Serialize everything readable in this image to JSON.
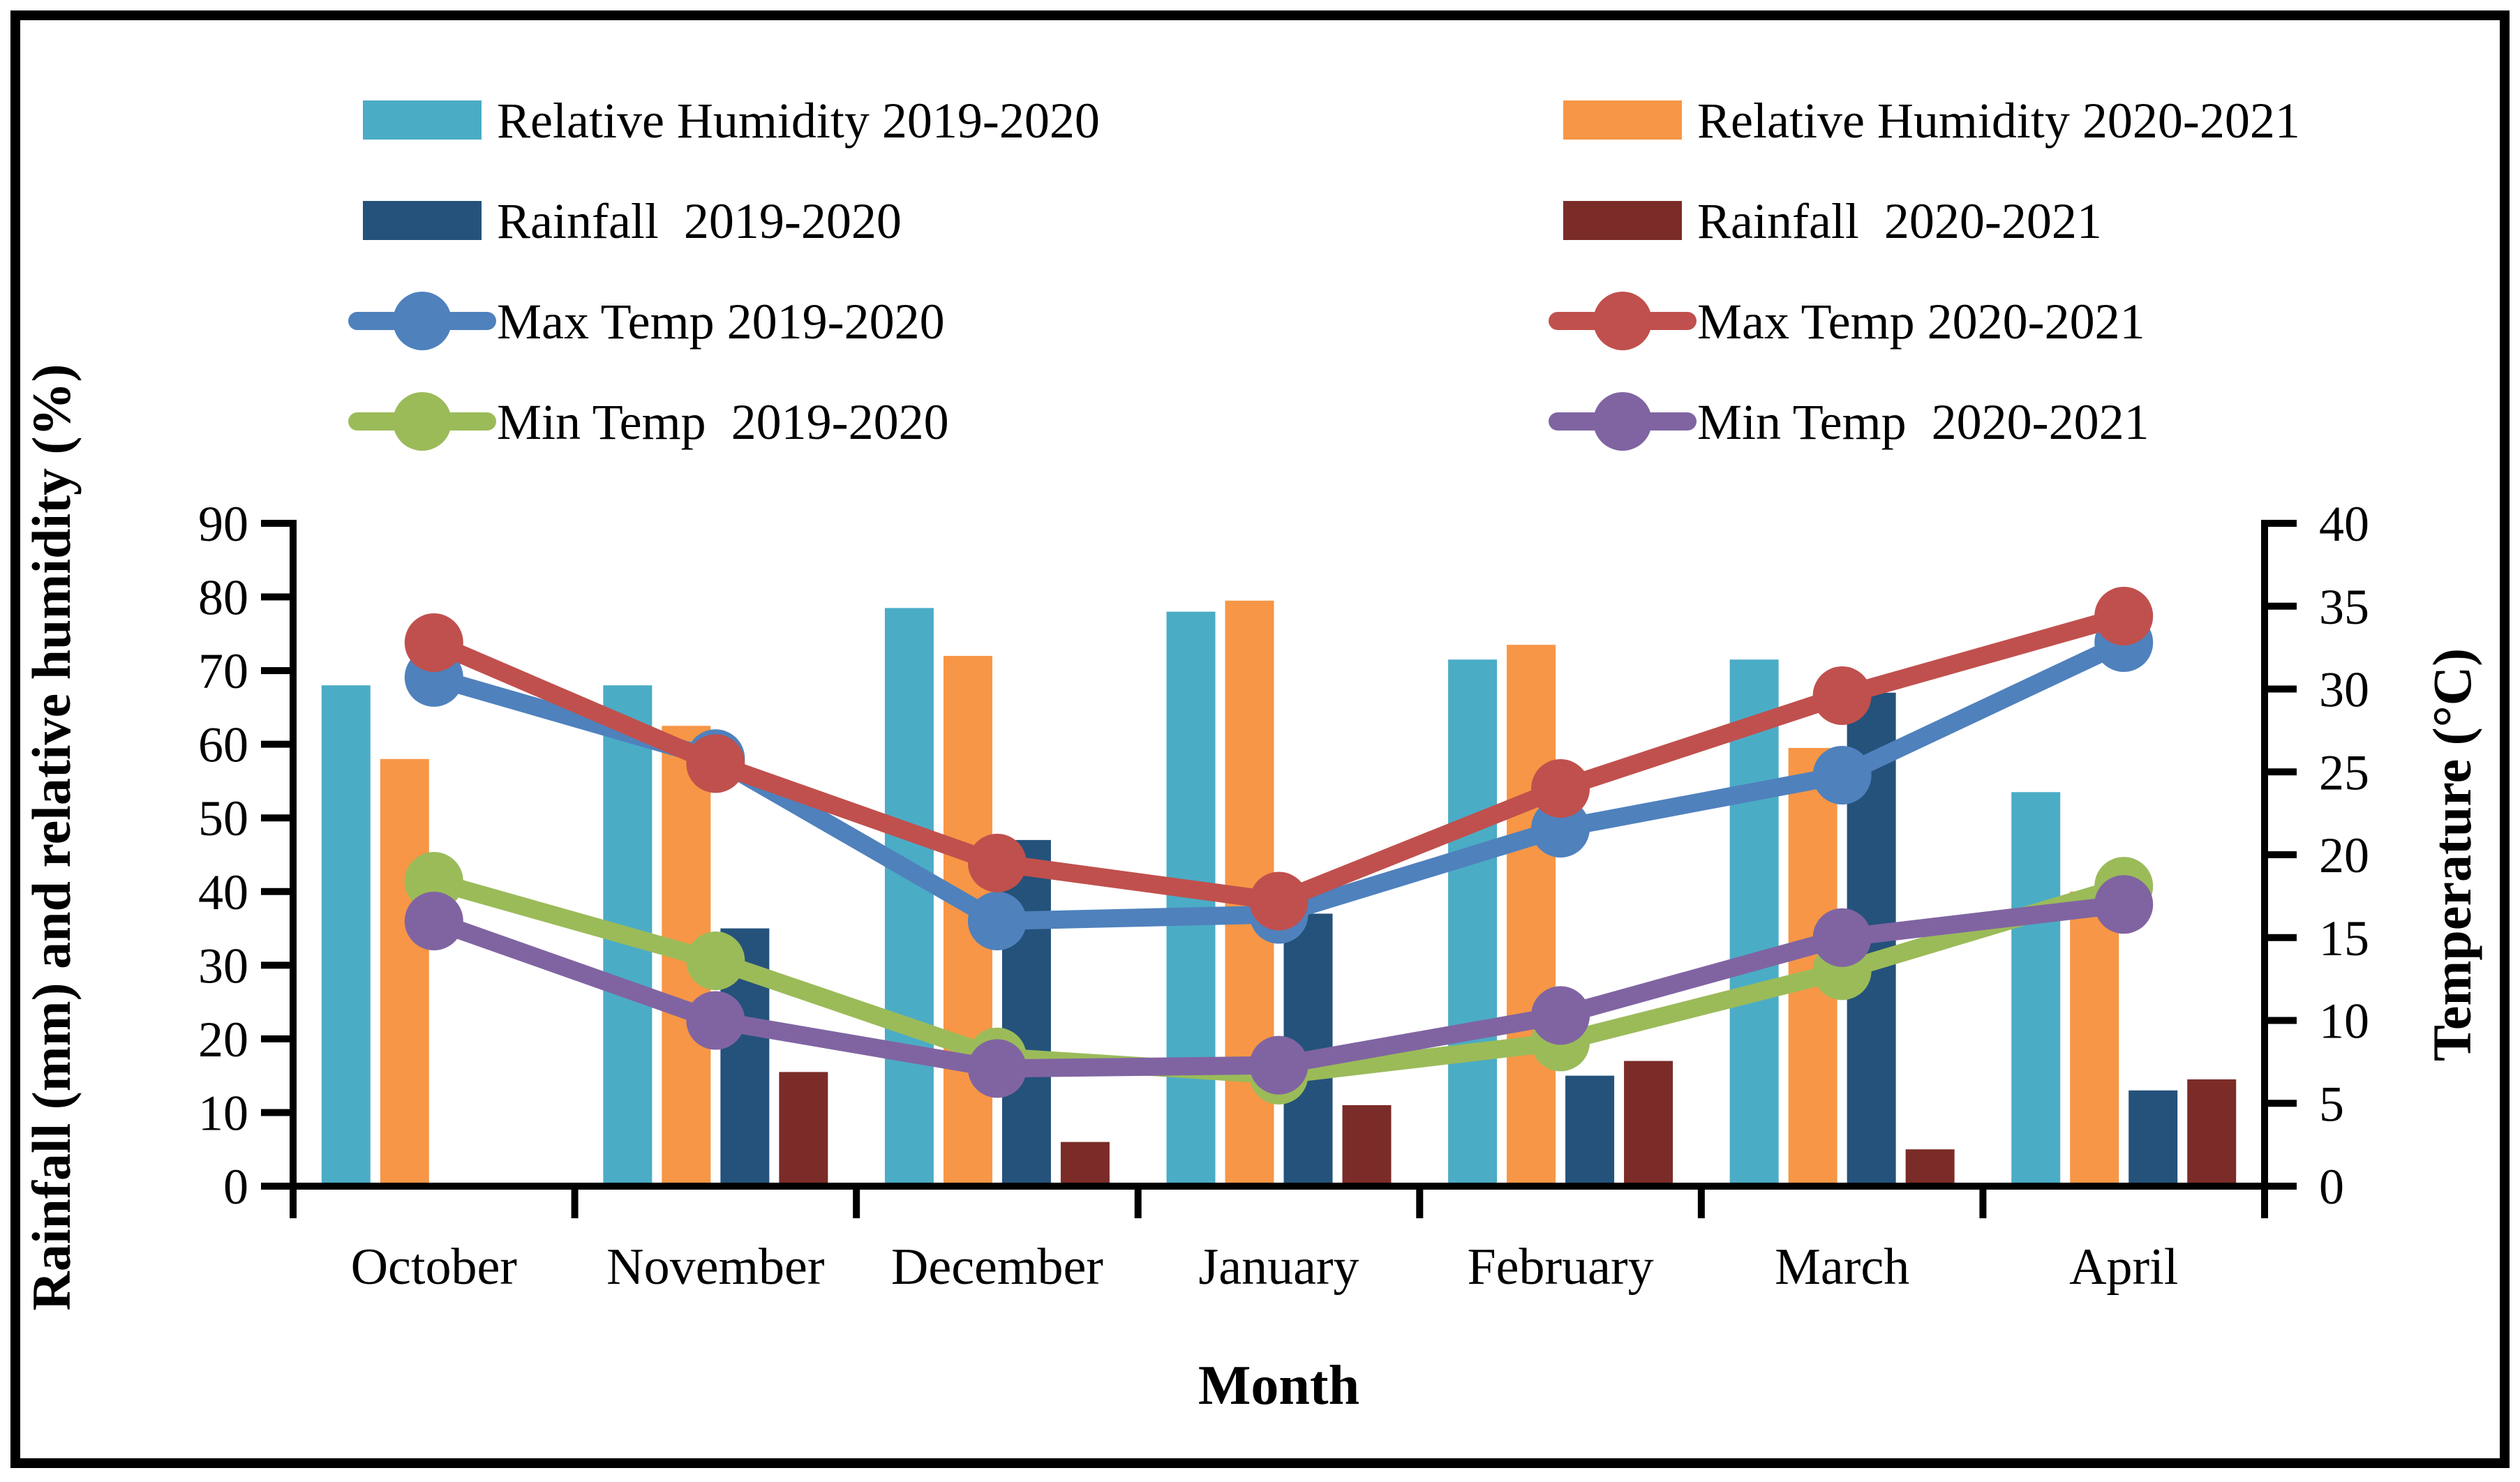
{
  "figure": {
    "background": "#ffffff",
    "border_color": "#000000"
  },
  "legend": {
    "columns": [
      {
        "items": [
          {
            "label": "Relative Humidity 2019-2020",
            "type": "bar",
            "color": "#4BACC6",
            "key": "rh-2019-2020"
          },
          {
            "label": "Rainfall  2019-2020",
            "type": "bar",
            "color": "#24527B",
            "key": "rainfall-2019-2020"
          },
          {
            "label": "Max Temp 2019-2020",
            "type": "line",
            "color": "#4F81BD",
            "key": "max-temp-2019-2020"
          },
          {
            "label": "Min Temp  2019-2020",
            "type": "line",
            "color": "#9BBB59",
            "key": "min-temp-2019-2020"
          }
        ]
      },
      {
        "items": [
          {
            "label": "Relative Humidity 2020-2021",
            "type": "bar",
            "color": "#F79646",
            "key": "rh-2020-2021"
          },
          {
            "label": "Rainfall  2020-2021",
            "type": "bar",
            "color": "#7B2C28",
            "key": "rainfall-2020-2021"
          },
          {
            "label": "Max Temp 2020-2021",
            "type": "line",
            "color": "#C0504D",
            "key": "max-temp-2020-2021"
          },
          {
            "label": "Min Temp  2020-2021",
            "type": "line",
            "color": "#8064A2",
            "key": "min-temp-2020-2021"
          }
        ]
      }
    ]
  },
  "chart_data": {
    "type": "combo-bar-line",
    "categories": [
      "October",
      "November",
      "December",
      "January",
      "February",
      "March",
      "April"
    ],
    "bar_series": [
      {
        "name": "Relative Humidity 2019-2020",
        "axis": "left",
        "color": "#4BACC6",
        "values": [
          68,
          68,
          78.5,
          78,
          71.5,
          71.5,
          53.5
        ]
      },
      {
        "name": "Relative Humidity 2020-2021",
        "axis": "left",
        "color": "#F79646",
        "values": [
          58,
          62.5,
          72,
          79.5,
          73.5,
          59.5,
          40
        ]
      },
      {
        "name": "Rainfall 2019-2020",
        "axis": "left",
        "color": "#24527B",
        "values": [
          0,
          35,
          47,
          37,
          15,
          67,
          13
        ]
      },
      {
        "name": "Rainfall 2020-2021",
        "axis": "left",
        "color": "#7B2C28",
        "values": [
          0,
          15.5,
          6,
          11,
          17,
          5,
          14.5
        ]
      }
    ],
    "line_series": [
      {
        "name": "Max Temp 2019-2020",
        "axis": "right",
        "color": "#4F81BD",
        "values": [
          30.7,
          25.8,
          16.0,
          16.4,
          21.6,
          24.8,
          32.8
        ]
      },
      {
        "name": "Max Temp 2020-2021",
        "axis": "right",
        "color": "#C0504D",
        "values": [
          32.8,
          25.5,
          19.5,
          17.2,
          24.0,
          29.6,
          34.4
        ]
      },
      {
        "name": "Min Temp 2019-2020",
        "axis": "right",
        "color": "#9BBB59",
        "values": [
          18.4,
          13.6,
          7.8,
          6.7,
          8.7,
          13.0,
          18.1
        ]
      },
      {
        "name": "Min Temp 2020-2021",
        "axis": "right",
        "color": "#8064A2",
        "values": [
          16.0,
          10.0,
          7.1,
          7.3,
          10.3,
          15.0,
          17.0
        ]
      }
    ],
    "left_axis": {
      "title": "Rainfall (mm) and relative humidity (%)",
      "min": 0,
      "max": 90,
      "step": 10,
      "ticks": [
        0,
        10,
        20,
        30,
        40,
        50,
        60,
        70,
        80,
        90
      ]
    },
    "right_axis": {
      "title": "Temperature (°C)",
      "min": 0,
      "max": 40,
      "step": 5,
      "ticks": [
        0,
        5,
        10,
        15,
        20,
        25,
        30,
        35,
        40
      ]
    },
    "x_axis": {
      "title": "Month"
    },
    "grid": false,
    "legend_position": "top-two-columns"
  }
}
